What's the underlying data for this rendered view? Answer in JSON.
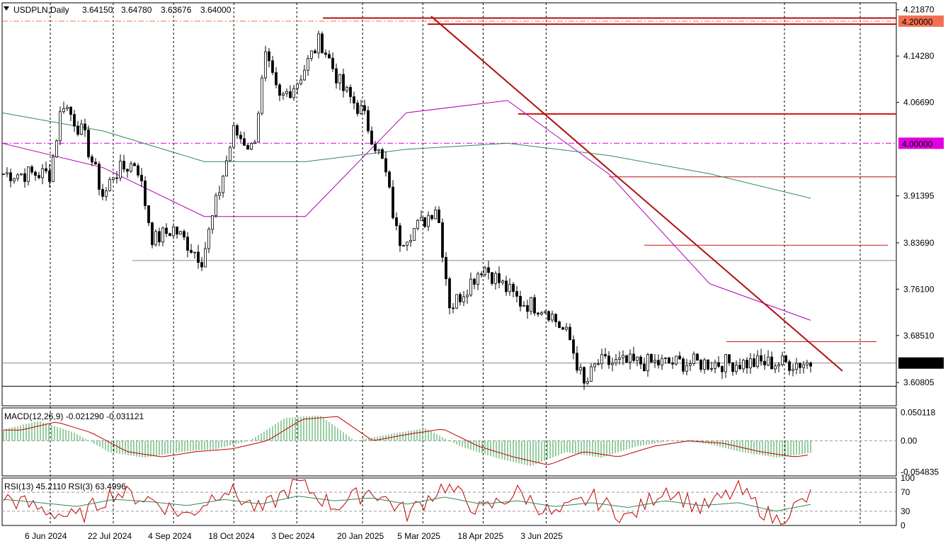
{
  "chart_data": [
    {
      "type": "candlestick",
      "symbol": "USDPLN",
      "timeframe": "Daily",
      "title": "USDPLN,Daily",
      "ohlc": {
        "open": "3.64150",
        "high": "3.64780",
        "low": "3.63676",
        "close": "3.64000"
      },
      "ylim": [
        3.57,
        4.23
      ],
      "price_ticks": [
        "4.21870",
        "4.14280",
        "4.06690",
        "3.91395",
        "3.83690",
        "3.76100",
        "3.68510",
        "3.60805"
      ],
      "price_markers": [
        {
          "label": "4.20000",
          "value": 4.2,
          "color": "#f27052"
        },
        {
          "label": "4.00000",
          "value": 4.0,
          "color": "#e000e0"
        },
        {
          "label": "3.64000",
          "value": 3.64,
          "color": "#000000"
        }
      ],
      "x_tick_labels": [
        "6 Jun 2024",
        "22 Jul 2024",
        "4 Sep 2024",
        "18 Oct 2024",
        "3 Dec 2024",
        "20 Jan 2025",
        "5 Mar 2025",
        "18 Apr 2025",
        "3 Jun 2025"
      ],
      "horizontal_levels": [
        4.205,
        4.195,
        4.048,
        3.945,
        3.833,
        3.808,
        3.675,
        3.64,
        3.602
      ],
      "trendline": {
        "from": [
          "Nov 2024",
          4.208
        ],
        "to": [
          "Jul 2025",
          3.627
        ]
      },
      "moving_averages": [
        {
          "color": "#b000b0",
          "approx_values": [
            4.0,
            3.96,
            3.88,
            3.88,
            4.05,
            4.07,
            3.95,
            3.77,
            3.71
          ]
        },
        {
          "color": "#2e8b57",
          "approx_values": [
            4.05,
            4.02,
            3.97,
            3.97,
            3.99,
            4.0,
            3.98,
            3.95,
            3.91
          ]
        }
      ],
      "close_path": [
        {
          "date": "6 Jun 2024",
          "close": 3.95
        },
        {
          "date": "15 Jun 2024",
          "close": 4.07
        },
        {
          "date": "1 Jul 2024",
          "close": 4.01
        },
        {
          "date": "15 Jul 2024",
          "close": 3.91
        },
        {
          "date": "22 Jul 2024",
          "close": 3.95
        },
        {
          "date": "8 Aug 2024",
          "close": 3.97
        },
        {
          "date": "20 Aug 2024",
          "close": 3.84
        },
        {
          "date": "4 Sep 2024",
          "close": 3.86
        },
        {
          "date": "25 Sep 2024",
          "close": 3.81
        },
        {
          "date": "18 Oct 2024",
          "close": 4.02
        },
        {
          "date": "1 Nov 2024",
          "close": 3.99
        },
        {
          "date": "10 Nov 2024",
          "close": 4.14
        },
        {
          "date": "20 Nov 2024",
          "close": 4.07
        },
        {
          "date": "3 Dec 2024",
          "close": 4.1
        },
        {
          "date": "20 Dec 2024",
          "close": 4.17
        },
        {
          "date": "5 Jan 2025",
          "close": 4.09
        },
        {
          "date": "20 Jan 2025",
          "close": 4.05
        },
        {
          "date": "5 Feb 2025",
          "close": 3.96
        },
        {
          "date": "15 Feb 2025",
          "close": 3.84
        },
        {
          "date": "5 Mar 2025",
          "close": 3.87
        },
        {
          "date": "15 Mar 2025",
          "close": 3.9
        },
        {
          "date": "25 Mar 2025",
          "close": 3.73
        },
        {
          "date": "18 Apr 2025",
          "close": 3.8
        },
        {
          "date": "1 May 2025",
          "close": 3.77
        },
        {
          "date": "15 May 2025",
          "close": 3.74
        },
        {
          "date": "3 Jun 2025",
          "close": 3.73
        },
        {
          "date": "20 Jun 2025",
          "close": 3.68
        },
        {
          "date": "1 Jul 2025",
          "close": 3.6
        },
        {
          "date": "10 Jul 2025",
          "close": 3.64
        }
      ]
    },
    {
      "type": "histogram",
      "title": "MACD(12,26,9) -0.021290 -0.031121",
      "ylim": [
        -0.062,
        0.058
      ],
      "ticks": [
        "0.050118",
        "0.00",
        "-0.054835"
      ],
      "approx_values": [
        0.02,
        0.035,
        0.015,
        -0.02,
        -0.03,
        -0.02,
        -0.015,
        0.0,
        0.04,
        0.045,
        0.0,
        0.012,
        0.022,
        -0.01,
        -0.03,
        -0.045,
        -0.02,
        -0.03,
        -0.01,
        0.0,
        -0.005,
        -0.02,
        -0.03,
        -0.021
      ],
      "signal_color": "#c00000",
      "hist_color": "#2e9e44"
    },
    {
      "type": "line",
      "title": "RSI(13) 45.2110  RSI(3) 63.4996",
      "ylim": [
        0,
        100
      ],
      "ticks": [
        "100",
        "70",
        "30",
        "0"
      ],
      "levels": [
        70,
        30
      ],
      "series": [
        {
          "color": "#c00000",
          "approx_values": [
            60,
            35,
            15,
            70,
            55,
            20,
            80,
            30,
            90,
            40,
            75,
            25,
            85,
            30,
            70,
            20,
            60,
            15,
            80,
            35,
            75,
            10,
            63
          ]
        },
        {
          "color": "#2e8b57",
          "approx_values": [
            55,
            48,
            40,
            55,
            50,
            42,
            55,
            45,
            62,
            52,
            58,
            45,
            60,
            45,
            52,
            40,
            48,
            38,
            52,
            42,
            48,
            30,
            45
          ]
        }
      ]
    }
  ]
}
